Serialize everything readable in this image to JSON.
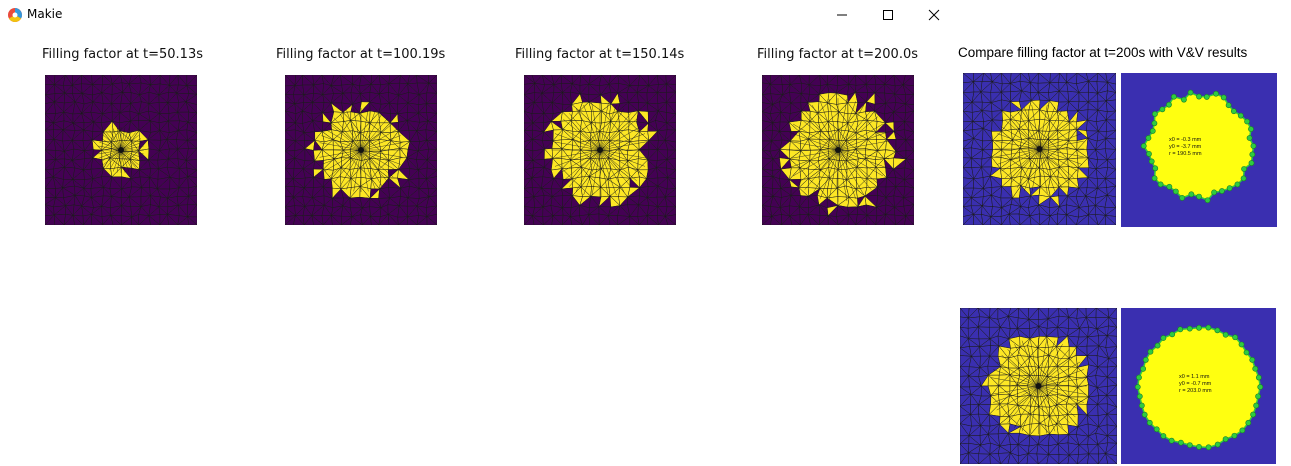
{
  "window": {
    "title": "Makie",
    "controls": [
      "minimize",
      "maximize",
      "close"
    ]
  },
  "colors": {
    "mesh_dark": "#440154",
    "filled": "#fde725",
    "vv_blue": "#3a2fb0",
    "vv_yellow": "#ffff10",
    "marker_green": "#2ecc40",
    "edge": "#1a1a1a"
  },
  "panels": [
    {
      "title": "Filling factor at t=50.13s",
      "filled_fraction": 0.08
    },
    {
      "title": "Filling factor at t=100.19s",
      "filled_fraction": 0.27
    },
    {
      "title": "Filling factor at t=150.14s",
      "filled_fraction": 0.35
    },
    {
      "title": "Filling factor at t=200.0s",
      "filled_fraction": 0.41
    }
  ],
  "comparison": {
    "title": "Compare filling factor at t=200s with V&V results",
    "top_fit": {
      "x0": "x0 = -0.3 mm",
      "y0": "y0 = -3.7 mm",
      "r": "r = 190.5 mm"
    },
    "bottom_fit": {
      "x0": "x0 = 1.1 mm",
      "y0": "y0 = -0.7 mm",
      "r": "r = 203.0 mm"
    }
  }
}
